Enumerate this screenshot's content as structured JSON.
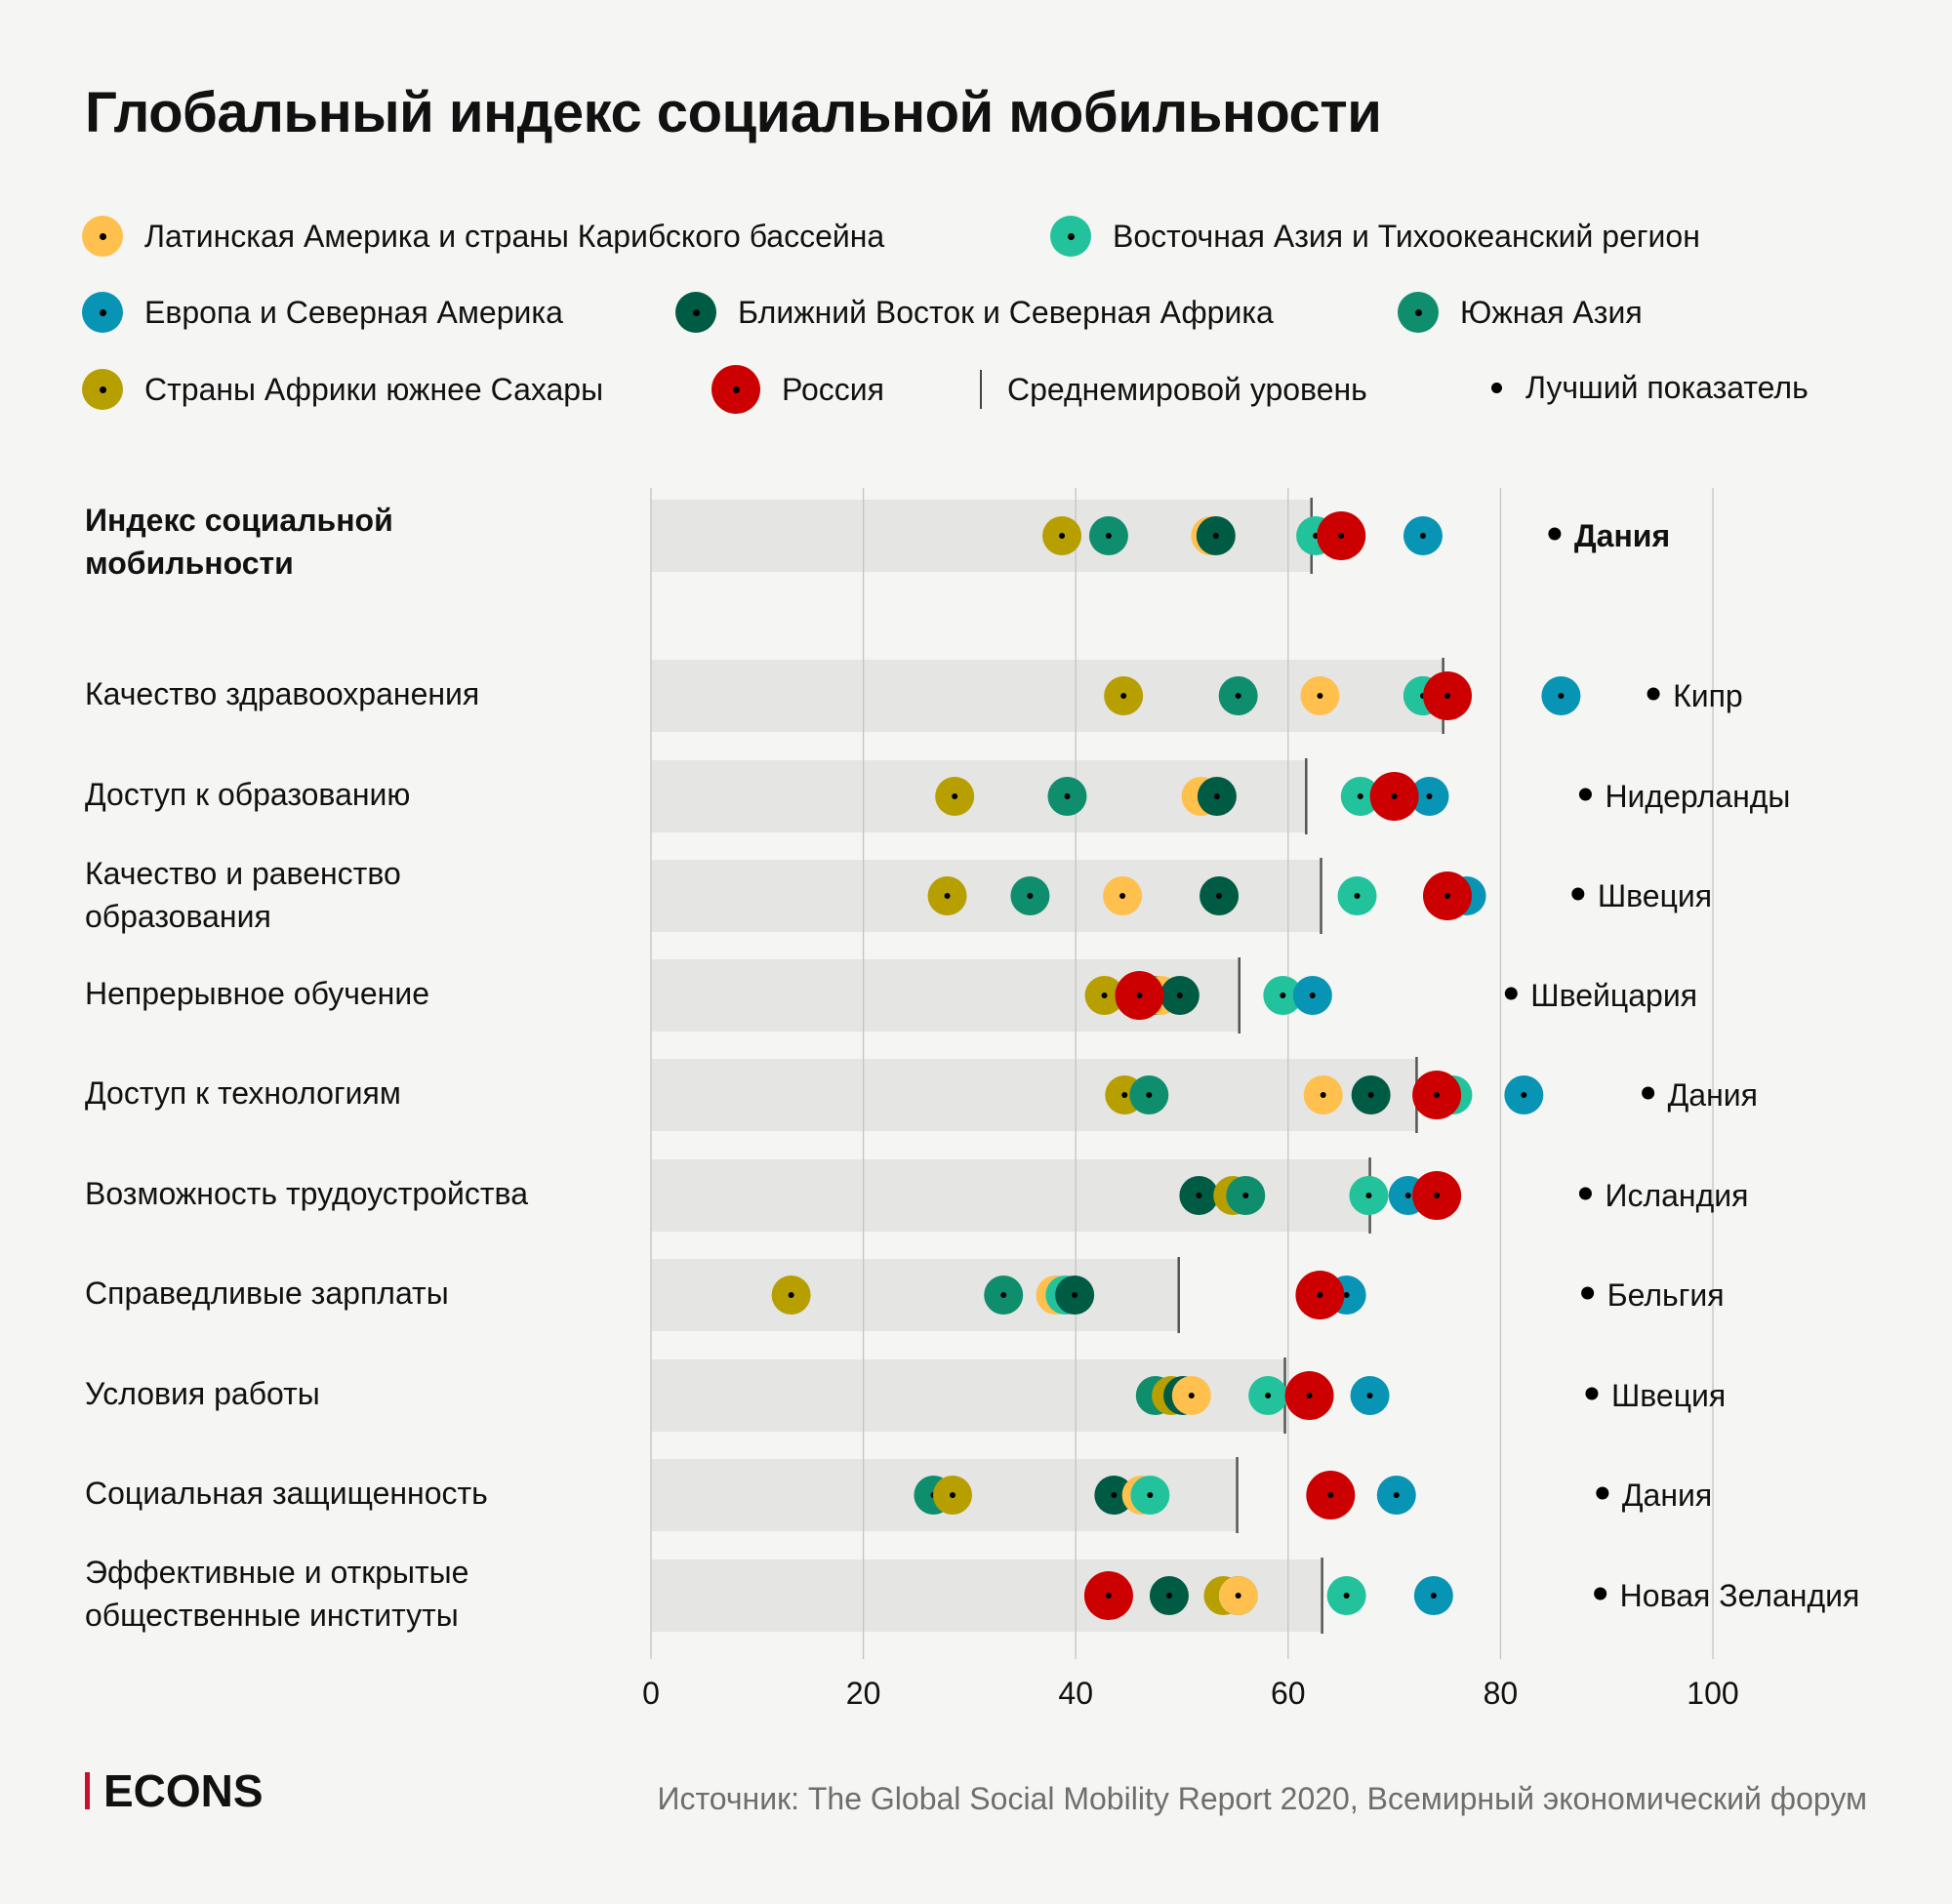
{
  "title": "Глобальный индекс социальной мобильности",
  "legend": {
    "regions": [
      {
        "key": "latam",
        "label": "Латинская Америка и страны Карибского бассейна",
        "color": "#ffc04d"
      },
      {
        "key": "eastasia",
        "label": "Восточная Азия и Тихоокеанский регион",
        "color": "#22c39c"
      },
      {
        "key": "europe",
        "label": "Европа и Северная Америка",
        "color": "#0895b5"
      },
      {
        "key": "mena",
        "label": "Ближний Восток и Северная Африка",
        "color": "#005b44"
      },
      {
        "key": "southasia",
        "label": "Южная Азия",
        "color": "#0f8e6e"
      },
      {
        "key": "ssa",
        "label": "Страны Африки южнее Сахары",
        "color": "#b89f00"
      },
      {
        "key": "russia",
        "label": "Россия",
        "color": "#cc0000"
      }
    ],
    "average_label": "Среднемировой уровень",
    "best_label": "Лучший показатель"
  },
  "chart_data": {
    "type": "dot-plot",
    "title": "Глобальный индекс социальной мобильности",
    "xlim": [
      0,
      100
    ],
    "x_ticks": [
      "0",
      "20",
      "40",
      "60",
      "80",
      "100"
    ],
    "grid": true,
    "categories": [
      {
        "label": "Индекс социальной мобильности",
        "bold": true,
        "average": 62.2,
        "best_country": "Дания",
        "best": 85.1,
        "values": {
          "ssa": 38.7,
          "southasia": 43.1,
          "mena": 53.2,
          "latam": 52.7,
          "eastasia": 62.6,
          "russia": 65.0,
          "europe": 72.7
        }
      },
      {
        "label": "Качество здравоохранения",
        "average": 74.6,
        "best_country": "Кипр",
        "best": 94.4,
        "values": {
          "ssa": 44.5,
          "southasia": 55.3,
          "latam": 63.0,
          "mena": 72.7,
          "eastasia": 72.7,
          "russia": 75.0,
          "europe": 85.7
        }
      },
      {
        "label": "Доступ к образованию",
        "average": 61.7,
        "best_country": "Нидерланды",
        "best": 88.0,
        "values": {
          "ssa": 28.6,
          "southasia": 39.2,
          "mena": 53.3,
          "latam": 51.8,
          "eastasia": 66.8,
          "europe": 73.3,
          "russia": 70.0
        }
      },
      {
        "label": "Качество и равенство образования",
        "average": 63.1,
        "best_country": "Швеция",
        "best": 87.3,
        "values": {
          "ssa": 27.9,
          "southasia": 35.7,
          "latam": 44.4,
          "mena": 53.5,
          "eastasia": 66.5,
          "europe": 76.8,
          "russia": 75.0
        }
      },
      {
        "label": "Непрерывное обучение",
        "average": 55.4,
        "best_country": "Швейцария",
        "best": 81.0,
        "values": {
          "ssa": 42.7,
          "mena": 49.8,
          "latam": 48.0,
          "southasia": 47.6,
          "russia": 46.0,
          "eastasia": 59.5,
          "europe": 62.3
        }
      },
      {
        "label": "Доступ к технологиям",
        "average": 72.1,
        "best_country": "Дания",
        "best": 93.9,
        "values": {
          "ssa": 44.6,
          "southasia": 46.9,
          "latam": 63.3,
          "mena": 67.8,
          "eastasia": 75.5,
          "russia": 74.0,
          "europe": 82.2
        }
      },
      {
        "label": "Возможность трудоустройства",
        "average": 67.7,
        "best_country": "Исландия",
        "best": 88.0,
        "values": {
          "mena": 51.6,
          "ssa": 54.8,
          "southasia": 56.0,
          "latam": 67.6,
          "eastasia": 67.6,
          "europe": 71.3,
          "russia": 74.0
        }
      },
      {
        "label": "Справедливые зарплаты",
        "average": 49.7,
        "best_country": "Бельгия",
        "best": 88.2,
        "values": {
          "ssa": 13.2,
          "southasia": 33.2,
          "mena": 39.9,
          "latam": 38.1,
          "eastasia": 39.0,
          "europe": 65.5,
          "russia": 63.0
        }
      },
      {
        "label": "Условия работы",
        "average": 59.7,
        "best_country": "Швеция",
        "best": 88.6,
        "values": {
          "mena": 50.1,
          "ssa": 49.0,
          "southasia": 47.5,
          "latam": 50.9,
          "eastasia": 58.1,
          "russia": 62.0,
          "europe": 67.7
        }
      },
      {
        "label": "Социальная защищенность",
        "average": 55.2,
        "best_country": "Дания",
        "best": 89.6,
        "values": {
          "ssa": 28.4,
          "southasia": 26.6,
          "mena": 43.6,
          "latam": 46.2,
          "eastasia": 47.0,
          "russia": 64.0,
          "europe": 70.2
        }
      },
      {
        "label": "Эффективные и открытые общественные институты",
        "average": 63.2,
        "best_country": "Новая Зеландия",
        "best": 89.4,
        "values": {
          "southasia": 55.3,
          "ssa": 53.9,
          "latam": 55.3,
          "mena": 48.8,
          "russia": 43.1,
          "eastasia": 65.5,
          "europe": 73.7
        }
      }
    ]
  },
  "row_labels": {
    "r0": [
      "Индекс социальной",
      "мобильности"
    ],
    "r1": [
      "Качество здравоохранения"
    ],
    "r2": [
      "Доступ к образованию"
    ],
    "r3": [
      "Качество и равенство",
      "образования"
    ],
    "r4": [
      "Непрерывное обучение"
    ],
    "r5": [
      "Доступ к технологиям"
    ],
    "r6": [
      "Возможность трудоустройства"
    ],
    "r7": [
      "Справедливые зарплаты"
    ],
    "r8": [
      "Условия работы"
    ],
    "r9": [
      "Социальная защищенность"
    ],
    "r10": [
      "Эффективные и открытые",
      "общественные институты"
    ]
  },
  "footer": {
    "logo": "ECONS",
    "source": "Источник: The Global Social Mobility Report 2020, Всемирный экономический форум"
  }
}
